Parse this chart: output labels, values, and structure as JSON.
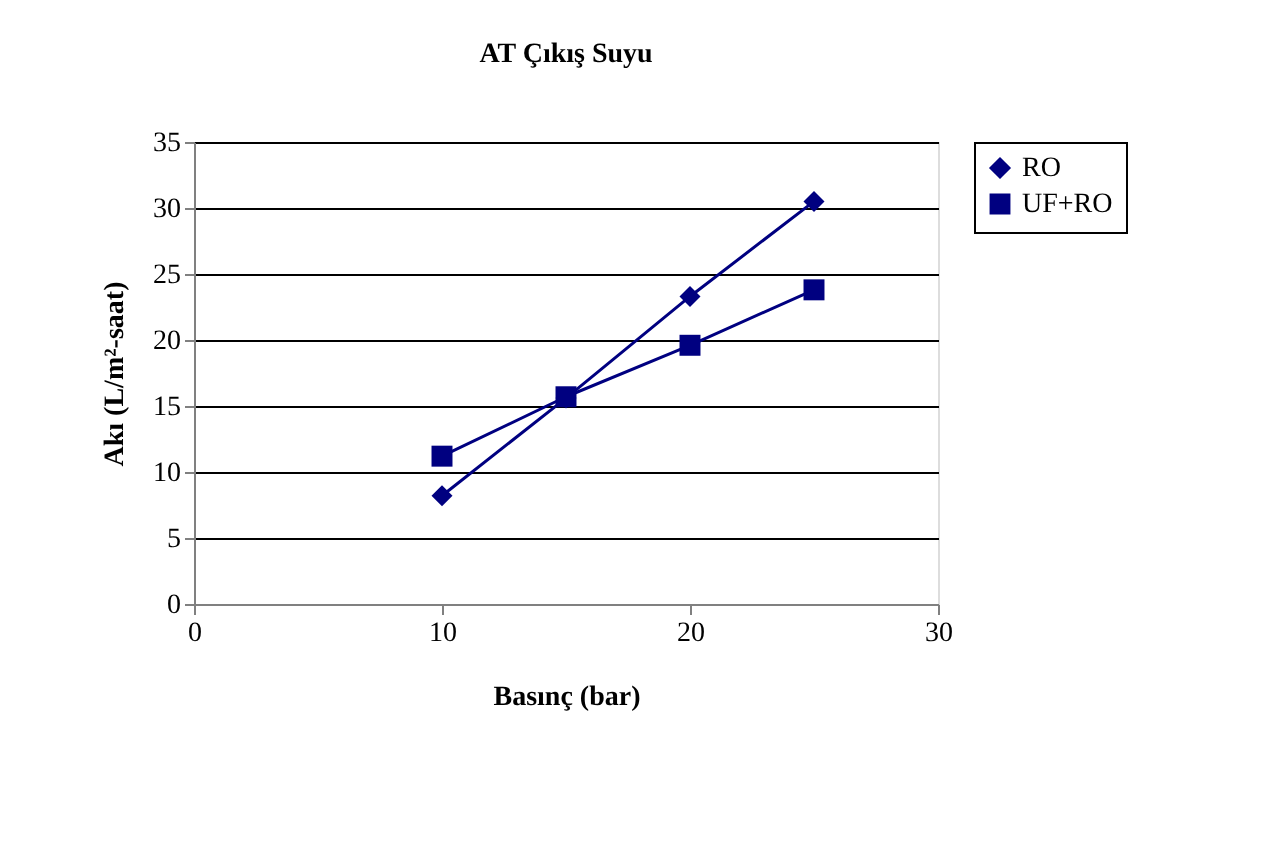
{
  "chart_data": {
    "type": "line",
    "title": "AT Çıkış Suyu",
    "xlabel": "Basınç (bar)",
    "ylabel": "Akı (L/m²-saat)",
    "x": [
      10,
      15,
      20,
      25
    ],
    "series": [
      {
        "name": "RO",
        "color": "#000080",
        "marker": "diamond",
        "values": [
          8.2,
          15.6,
          23.3,
          30.5
        ]
      },
      {
        "name": "UF+RO",
        "color": "#000080",
        "marker": "square",
        "values": [
          11.2,
          15.7,
          19.6,
          23.8
        ]
      }
    ],
    "xlim": [
      0,
      30
    ],
    "xticks": [
      0,
      10,
      20,
      30
    ],
    "ylim": [
      0,
      35
    ],
    "yticks": [
      0,
      5,
      10,
      15,
      20,
      25,
      30,
      35
    ],
    "grid": "y",
    "legend": "right"
  }
}
